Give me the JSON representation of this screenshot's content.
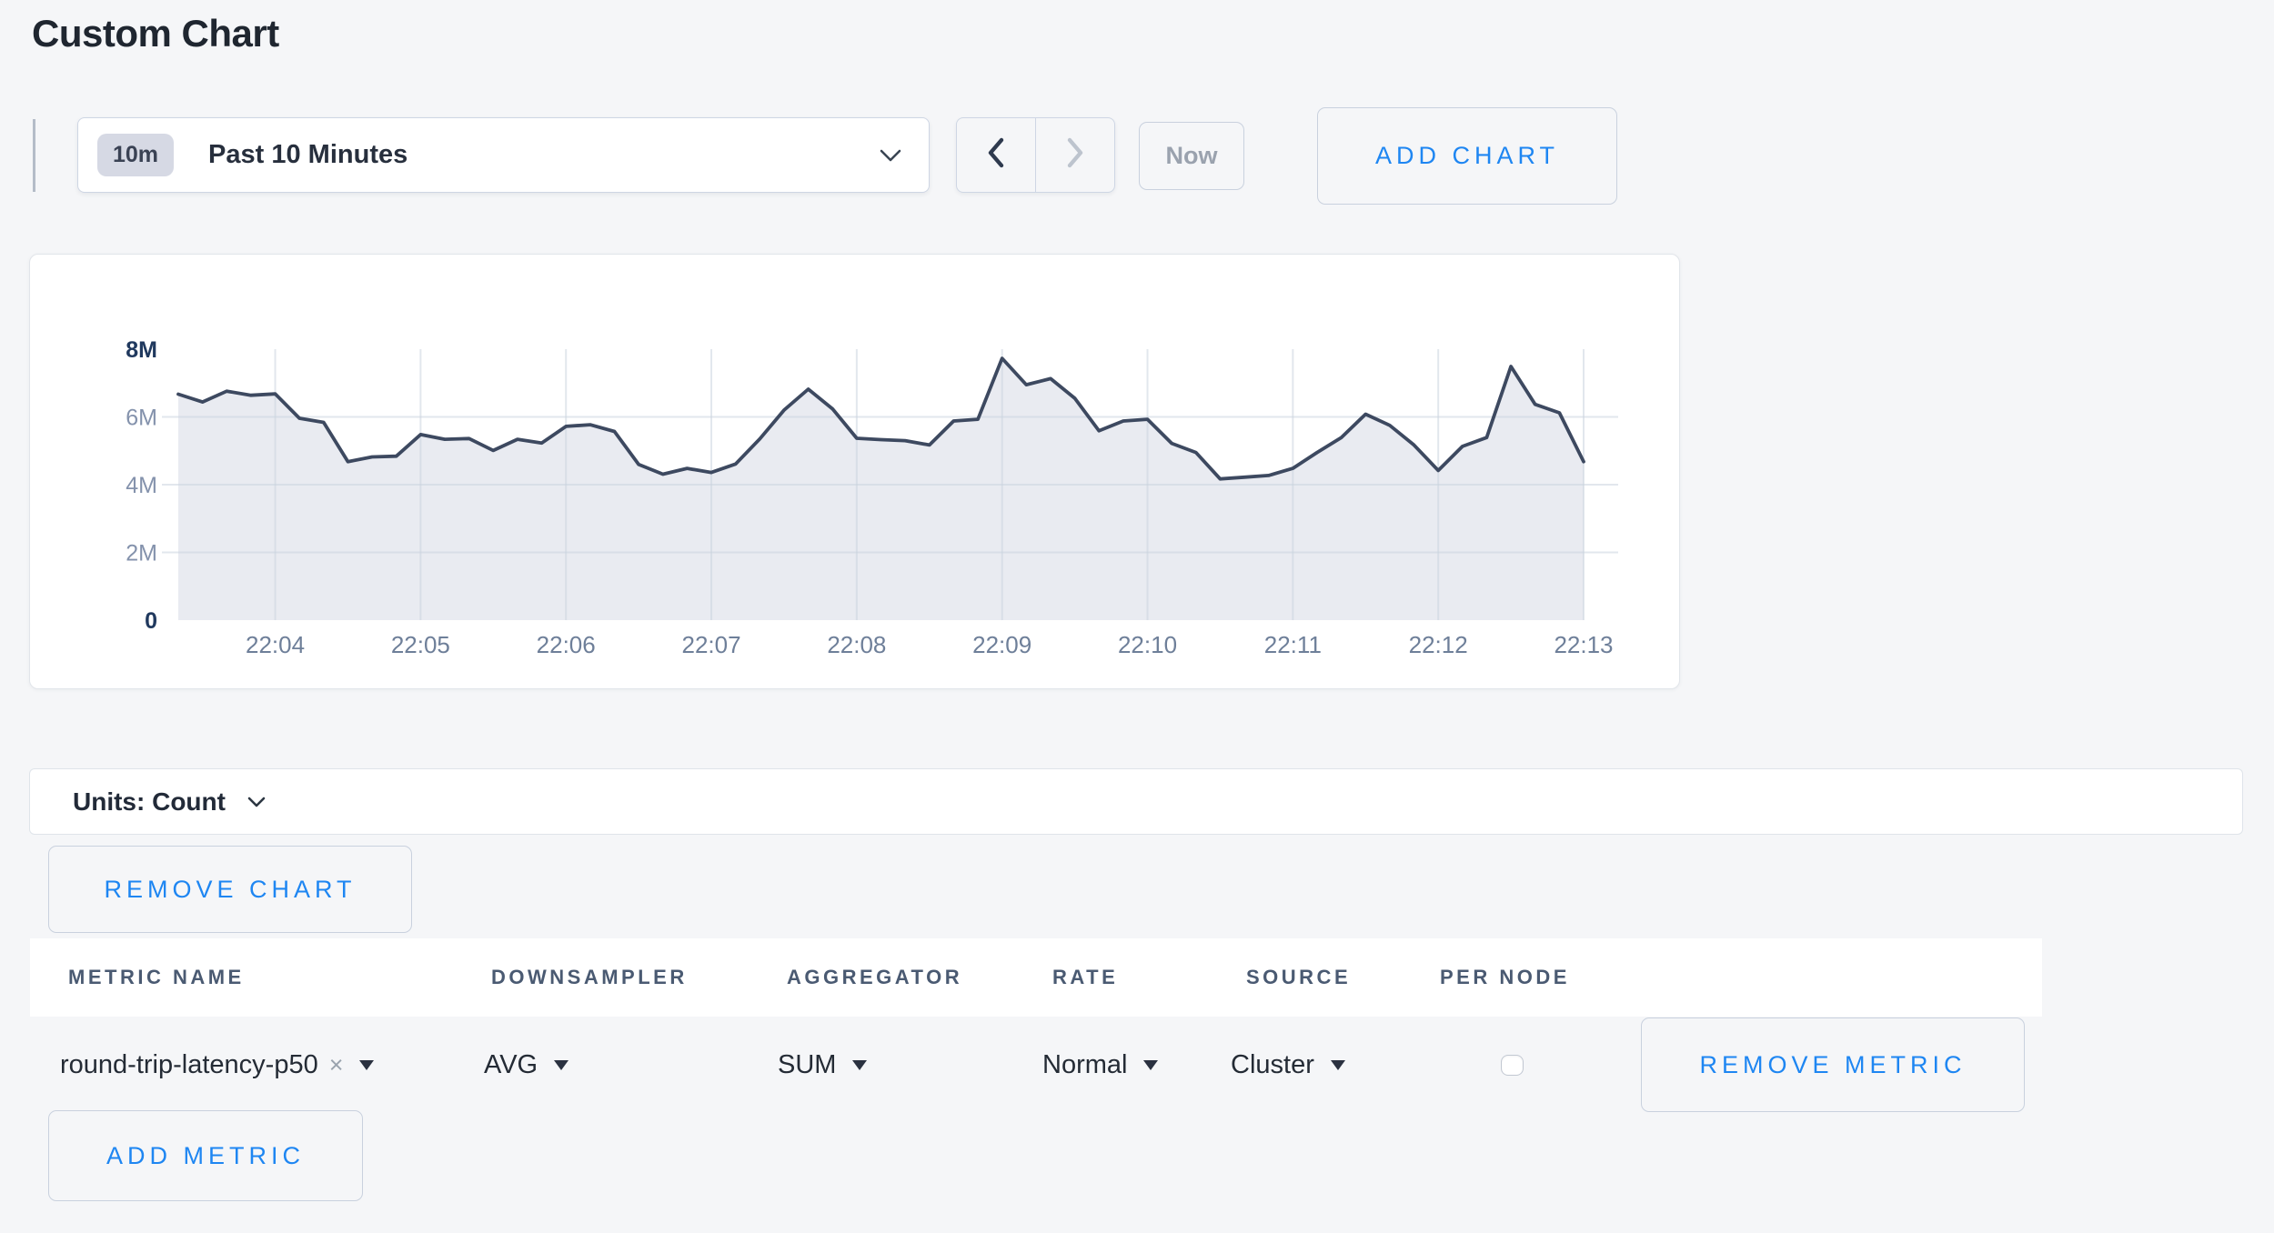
{
  "page": {
    "title": "Custom Chart",
    "colors": {
      "accent_blue": "#1e86f2",
      "background": "#f5f6f8",
      "card_background": "#ffffff"
    }
  },
  "time_selector": {
    "badge": "10m",
    "label": "Past 10 Minutes",
    "now_label": "Now"
  },
  "add_chart_label": "ADD CHART",
  "chart_data": {
    "type": "area",
    "title": "",
    "xlabel": "",
    "ylabel": "",
    "ylim": [
      0,
      8000000
    ],
    "grid": true,
    "legend_position": "none",
    "y_ticks": [
      {
        "label": "8M",
        "value": 8000000,
        "emphasis": true
      },
      {
        "label": "6M",
        "value": 6000000,
        "emphasis": false
      },
      {
        "label": "4M",
        "value": 4000000,
        "emphasis": false
      },
      {
        "label": "2M",
        "value": 2000000,
        "emphasis": false
      },
      {
        "label": "0",
        "value": 0,
        "emphasis": true
      }
    ],
    "x_ticks": [
      "22:04",
      "22:05",
      "22:06",
      "22:07",
      "22:08",
      "22:09",
      "22:10",
      "22:11",
      "22:12",
      "22:13"
    ],
    "series": [
      {
        "name": "round-trip-latency-p50",
        "start_time": "22:03:20",
        "interval_seconds": 10,
        "values": [
          6670000,
          6440000,
          6760000,
          6640000,
          6680000,
          5960000,
          5840000,
          4680000,
          4820000,
          4840000,
          5480000,
          5340000,
          5360000,
          5010000,
          5340000,
          5230000,
          5720000,
          5770000,
          5570000,
          4600000,
          4310000,
          4480000,
          4360000,
          4610000,
          5350000,
          6200000,
          6820000,
          6240000,
          5370000,
          5330000,
          5300000,
          5170000,
          5880000,
          5930000,
          7730000,
          6950000,
          7130000,
          6550000,
          5590000,
          5880000,
          5930000,
          5220000,
          4950000,
          4170000,
          4220000,
          4270000,
          4480000,
          4950000,
          5390000,
          6080000,
          5750000,
          5170000,
          4420000,
          5130000,
          5390000,
          7490000,
          6370000,
          6120000,
          4680000
        ]
      }
    ],
    "line_color": "#3d4960",
    "fill_color": "#e9ebf1",
    "grid_color": "rgba(203,211,223,0.55)",
    "y_label_color_strong": "#20395e",
    "y_label_color": "#8492ac",
    "x_label_color": "#6e7f99"
  },
  "units_bar": {
    "label": "Units: Count"
  },
  "remove_chart_label": "REMOVE CHART",
  "metrics_table": {
    "columns": [
      "METRIC NAME",
      "DOWNSAMPLER",
      "AGGREGATOR",
      "RATE",
      "SOURCE",
      "PER NODE"
    ],
    "row": {
      "metric_name": "round-trip-latency-p50",
      "clear_icon": "×",
      "downsampler": "AVG",
      "aggregator": "SUM",
      "rate": "Normal",
      "source": "Cluster",
      "per_node_checked": false
    },
    "remove_metric_label": "REMOVE METRIC",
    "add_metric_label": "ADD METRIC"
  }
}
